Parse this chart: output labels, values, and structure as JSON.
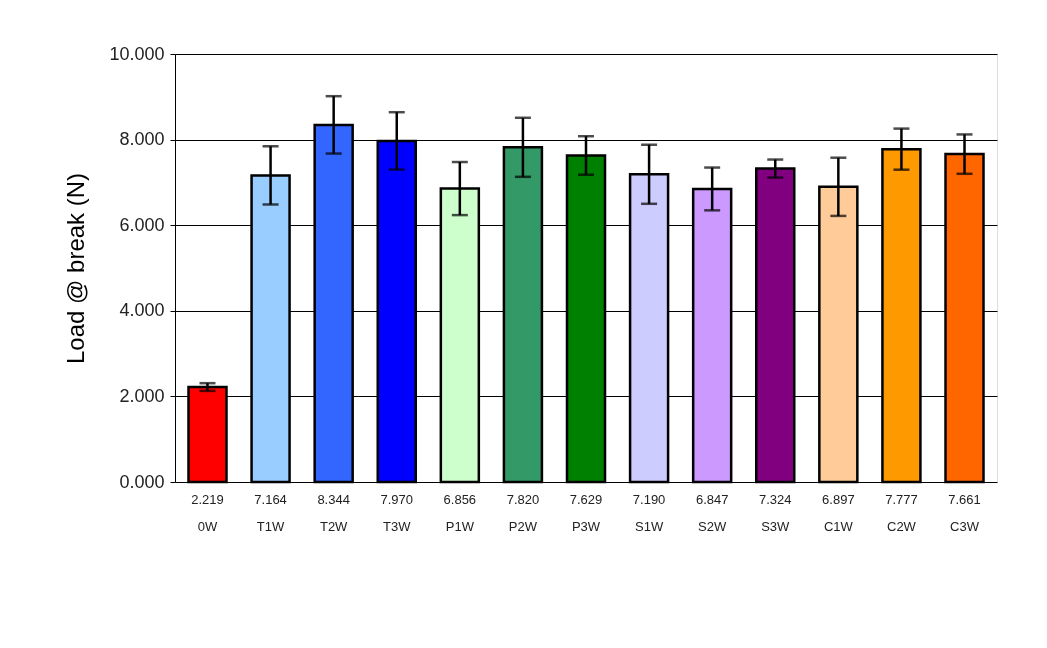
{
  "chart_data": {
    "type": "bar",
    "ylabel": "Load @ break (N)",
    "categories": [
      "0W",
      "T1W",
      "T2W",
      "T3W",
      "P1W",
      "P2W",
      "P3W",
      "S1W",
      "S2W",
      "S3W",
      "C1W",
      "C2W",
      "C3W"
    ],
    "values": [
      2.219,
      7.164,
      8.344,
      7.97,
      6.856,
      7.82,
      7.629,
      7.19,
      6.847,
      7.324,
      6.897,
      7.777,
      7.661
    ],
    "colors": [
      "#ff0000",
      "#99ccff",
      "#3366ff",
      "#0000ff",
      "#ccffcc",
      "#339966",
      "#008000",
      "#ccccff",
      "#cc99ff",
      "#800080",
      "#ffcc99",
      "#ff9900",
      "#ff6600"
    ],
    "errors": [
      0.09,
      0.68,
      0.67,
      0.67,
      0.62,
      0.69,
      0.45,
      0.69,
      0.5,
      0.21,
      0.68,
      0.48,
      0.46
    ],
    "ylim": [
      0,
      10
    ],
    "yticks": [
      {
        "value": 0,
        "label": "0.000"
      },
      {
        "value": 2,
        "label": "2.000"
      },
      {
        "value": 4,
        "label": "4.000"
      },
      {
        "value": 6,
        "label": "6.000"
      },
      {
        "value": 8,
        "label": "8.000"
      },
      {
        "value": 10,
        "label": "10.000"
      }
    ],
    "value_labels": [
      "2.219",
      "7.164",
      "8.344",
      "7.970",
      "6.856",
      "7.820",
      "7.629",
      "7.190",
      "6.847",
      "7.324",
      "6.897",
      "7.777",
      "7.661"
    ],
    "grid": "y"
  }
}
